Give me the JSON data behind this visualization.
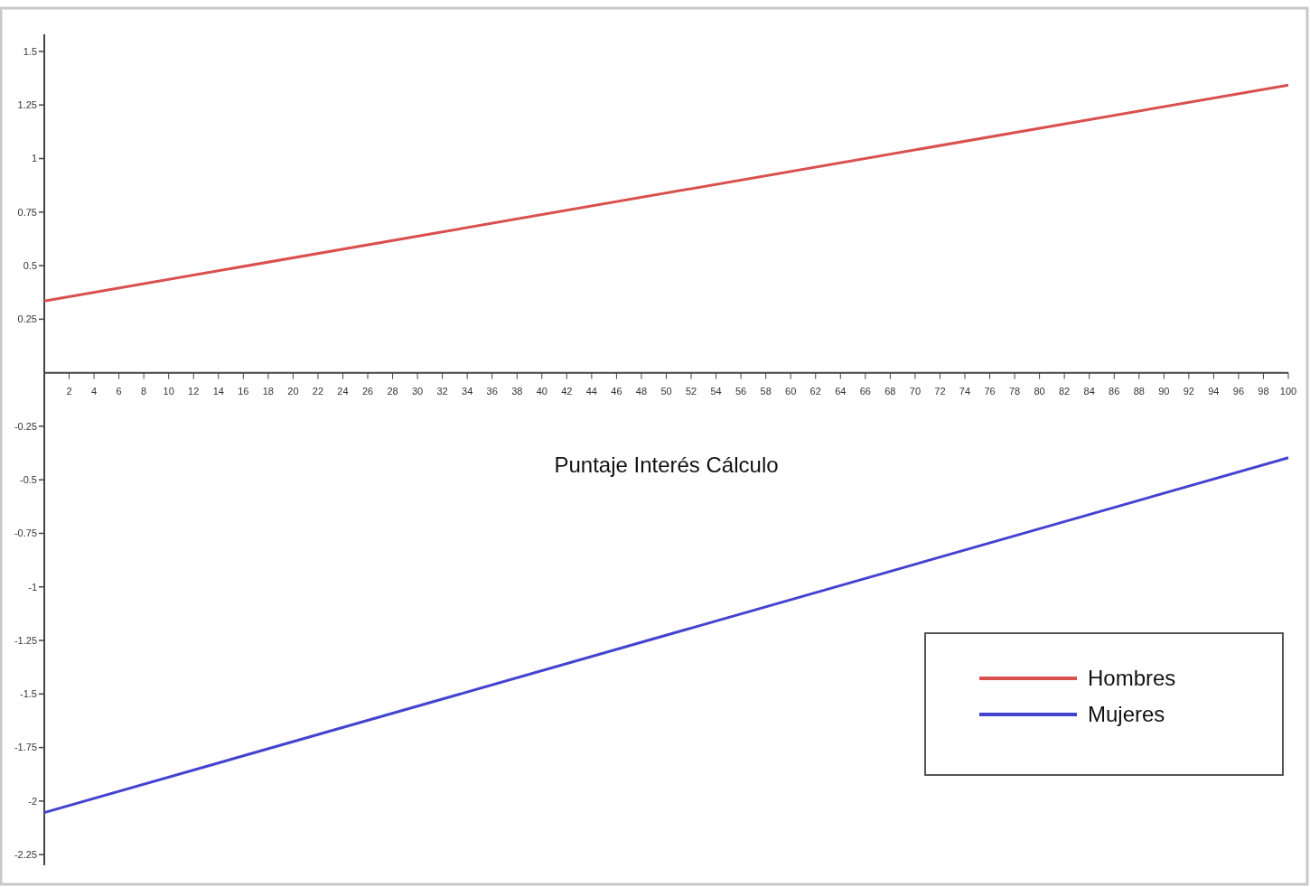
{
  "chart_data": {
    "type": "line",
    "xlabel": "Puntaje Interés Cálculo",
    "x": [
      0,
      100
    ],
    "series": [
      {
        "name": "Hombres",
        "color": "#d9504f",
        "values": [
          0.335,
          1.343
        ]
      },
      {
        "name": "Mujeres",
        "color": "#4343d0",
        "values": [
          -2.054,
          -0.397
        ]
      }
    ],
    "xlim": [
      0,
      100
    ],
    "ylim": [
      -2.3,
      1.58
    ],
    "xticks": [
      2,
      4,
      6,
      8,
      10,
      12,
      14,
      16,
      18,
      20,
      22,
      24,
      26,
      28,
      30,
      32,
      34,
      36,
      38,
      40,
      42,
      44,
      46,
      48,
      50,
      52,
      54,
      56,
      58,
      60,
      62,
      64,
      66,
      68,
      70,
      72,
      74,
      76,
      78,
      80,
      82,
      84,
      86,
      88,
      90,
      92,
      94,
      96,
      98,
      100
    ],
    "yticks": [
      1.5,
      1.25,
      1,
      0.75,
      0.5,
      0.25,
      -0.25,
      -0.5,
      -0.75,
      -1,
      -1.25,
      -1.5,
      -1.75,
      -2,
      -2.25
    ],
    "grid": false,
    "legend": "bottom right",
    "marker": "none",
    "line_style": "solid"
  }
}
